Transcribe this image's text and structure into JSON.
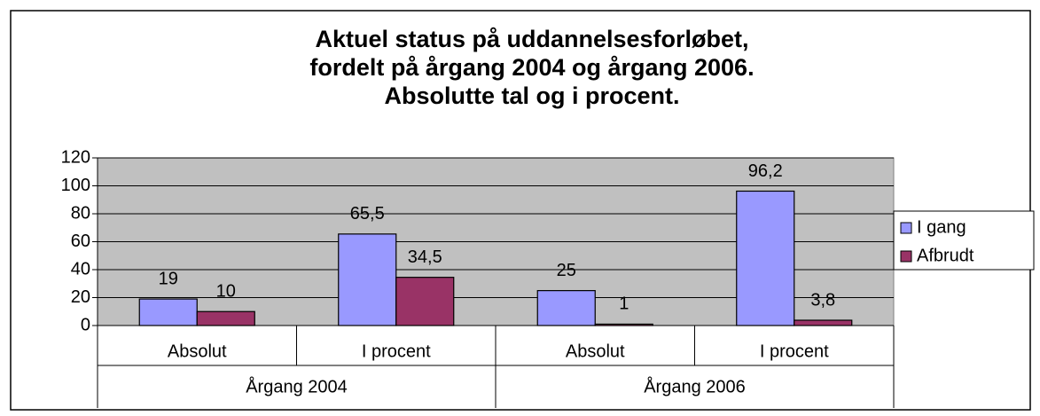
{
  "chart_data": {
    "type": "bar",
    "title": [
      "Aktuel status på uddannelsesforløbet,",
      "fordelt på årgang 2004 og årgang 2006.",
      "Absolutte tal og i procent."
    ],
    "categories": [
      "Absolut",
      "I procent",
      "Absolut",
      "I procent"
    ],
    "groups": [
      "Årgang 2004",
      "Årgang 2006"
    ],
    "series": [
      {
        "name": "I gang",
        "color": "#9999ff",
        "values": [
          19,
          65.5,
          25,
          96.2
        ],
        "value_labels": [
          "19",
          "65,5",
          "25",
          "96,2"
        ]
      },
      {
        "name": "Afbrudt",
        "color": "#993366",
        "values": [
          10,
          34.5,
          1,
          3.8
        ],
        "value_labels": [
          "10",
          "34,5",
          "1",
          "3,8"
        ]
      }
    ],
    "ylim": [
      0,
      120
    ],
    "yticks": [
      0,
      20,
      40,
      60,
      80,
      100,
      120
    ],
    "grid": true,
    "plot_background": "#c0c0c0",
    "legend": "right"
  }
}
